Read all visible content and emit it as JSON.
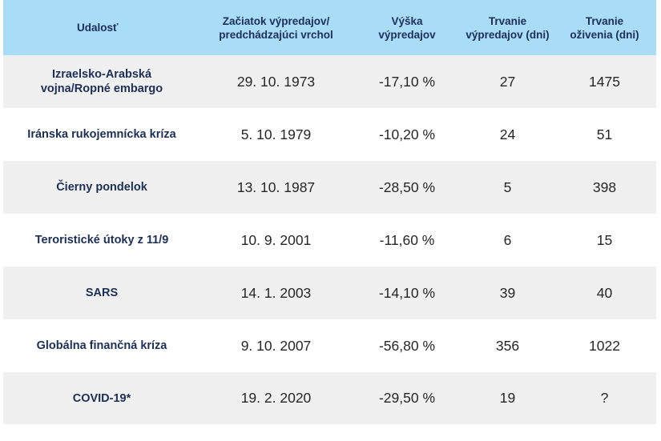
{
  "table": {
    "headers": {
      "event": "Udalosť",
      "start": [
        "Začiatok výpredajov/",
        "predchádzajúci vrchol"
      ],
      "drop": [
        "Výška",
        "výpredajov"
      ],
      "sell_duration": [
        "Trvanie",
        "výpredajov (dni)"
      ],
      "recovery_duration": [
        "Trvanie",
        "oživenia (dni)"
      ]
    },
    "rows": [
      {
        "event": [
          "Izraelsko-Arabská",
          "vojna/Ropné embargo"
        ],
        "start": "29. 10. 1973",
        "drop": "-17,10 %",
        "sell_duration": "27",
        "recovery_duration": "1475"
      },
      {
        "event": [
          "Iránska rukojemnícka kríza"
        ],
        "start": "5. 10. 1979",
        "drop": "-10,20 %",
        "sell_duration": "24",
        "recovery_duration": "51"
      },
      {
        "event": [
          "Čierny pondelok"
        ],
        "start": "13. 10. 1987",
        "drop": "-28,50 %",
        "sell_duration": "5",
        "recovery_duration": "398"
      },
      {
        "event": [
          "Teroristické útoky z 11/9"
        ],
        "start": "10. 9. 2001",
        "drop": "-11,60 %",
        "sell_duration": "6",
        "recovery_duration": "15"
      },
      {
        "event": [
          "SARS"
        ],
        "start": "14. 1. 2003",
        "drop": "-14,10 %",
        "sell_duration": "39",
        "recovery_duration": "40"
      },
      {
        "event": [
          "Globálna finančná kríza"
        ],
        "start": "9. 10. 2007",
        "drop": "-56,80 %",
        "sell_duration": "356",
        "recovery_duration": "1022"
      },
      {
        "event": [
          "COVID-19*"
        ],
        "start": "19. 2. 2020",
        "drop": "-29,50 %",
        "sell_duration": "19",
        "recovery_duration": "?"
      }
    ],
    "colors": {
      "header_bg": "#a9dcf7",
      "header_text": "#1c2f56",
      "row_alt_bg": "#f0f0f0",
      "event_text": "#1c2f56",
      "value_text": "#262626"
    }
  }
}
